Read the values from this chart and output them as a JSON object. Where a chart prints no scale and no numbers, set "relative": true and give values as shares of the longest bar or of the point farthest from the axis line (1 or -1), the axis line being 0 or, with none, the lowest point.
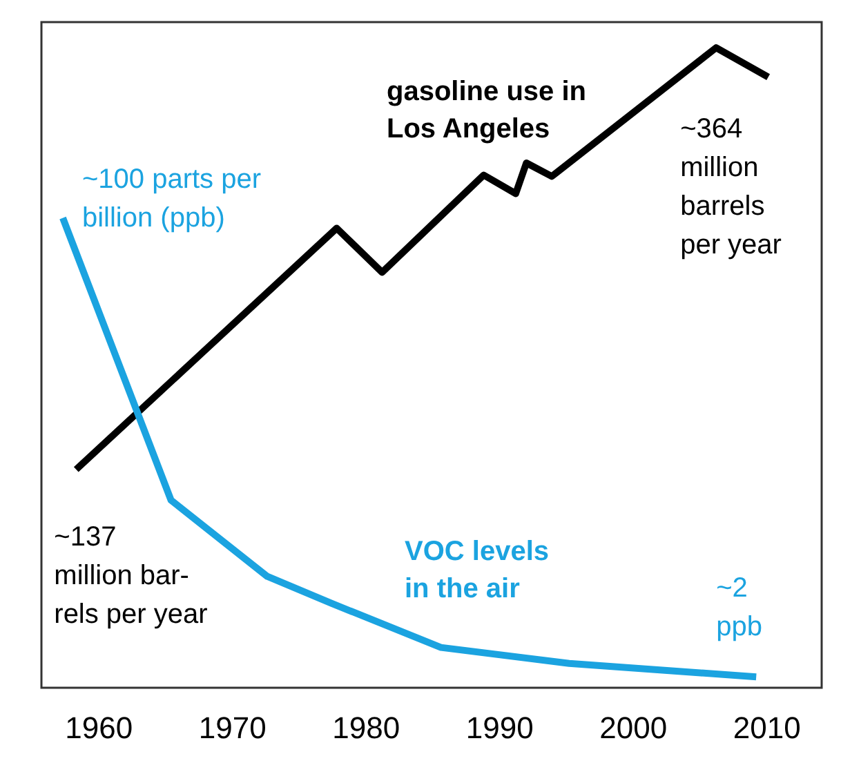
{
  "chart_data": {
    "type": "line",
    "relative": true,
    "marker": "none",
    "grid": false,
    "legend": false,
    "xlim": [
      1955.7,
      2014.1
    ],
    "xticks": [
      1960,
      1970,
      1980,
      1990,
      2000,
      2010
    ],
    "series": [
      {
        "name": "gasoline use in\nLos Angeles",
        "color": "#000000",
        "x": [
          1958.3,
          1977.8,
          1981.2,
          1988.8,
          1991.2,
          1992.0,
          1993.9,
          2006.2,
          2010.1
        ],
        "values": [
          0.341,
          0.718,
          0.649,
          0.801,
          0.772,
          0.82,
          0.799,
          1.0,
          0.954
        ]
      },
      {
        "name": "VOC levels\nin the air",
        "color": "#1ba3e0",
        "x": [
          1957.3,
          1965.4,
          1972.6,
          1977.4,
          1985.6,
          1995.2,
          2009.2
        ],
        "values": [
          0.734,
          0.293,
          0.174,
          0.132,
          0.063,
          0.038,
          0.017
        ]
      }
    ],
    "annotations": [
      {
        "text": "~100 parts per\nbillion (ppb)",
        "x": 1957.3,
        "y": 0.734
      },
      {
        "text": "~137\nmillion bar-\nrels per year",
        "x": 1958.3,
        "y": 0.341
      },
      {
        "text": "~364\nmillion\nbarrels\nper year",
        "x": 2006.2,
        "y": 1.0
      },
      {
        "text": "~2\nppb",
        "x": 2009.2,
        "y": 0.017
      }
    ]
  }
}
